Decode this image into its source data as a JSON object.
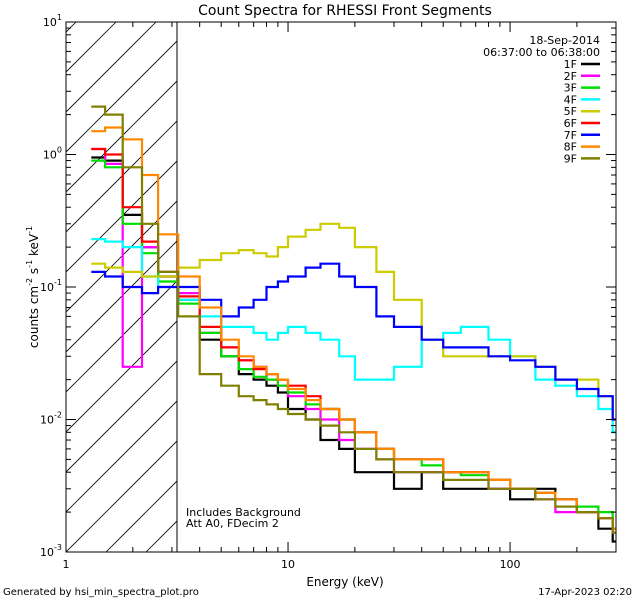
{
  "chart_data": {
    "type": "line",
    "title": "Count Spectra for RHESSI Front Segments",
    "xlabel": "Energy (keV)",
    "ylabel_main": "counts cm",
    "ylabel_exp1": "-2",
    "ylabel_s": " s",
    "ylabel_exp2": "-1",
    "ylabel_kev": " keV",
    "ylabel_exp3": "-1",
    "x_scale": "log",
    "y_scale": "log",
    "xlim": [
      1,
      300
    ],
    "ylim": [
      0.001,
      10
    ],
    "x_ticks": [
      {
        "value": 1,
        "label": "1"
      },
      {
        "value": 10,
        "label": "10"
      },
      {
        "value": 100,
        "label": "100"
      }
    ],
    "y_ticks": [
      {
        "value": 10,
        "base": "10",
        "exp": "1"
      },
      {
        "value": 1,
        "base": "10",
        "exp": "0"
      },
      {
        "value": 0.1,
        "base": "10",
        "exp": "-1"
      },
      {
        "value": 0.01,
        "base": "10",
        "exp": "-2"
      },
      {
        "value": 0.001,
        "base": "10",
        "exp": "-3"
      }
    ],
    "hatched_region_kev": [
      1,
      3
    ],
    "date": "18-Sep-2014",
    "time_range": "06:37:00 to 06:38:00",
    "annotations": [
      "Includes Background",
      "Att A0, FDecim 2"
    ],
    "footer_left": "Generated by hsi_min_spectra_plot.pro",
    "footer_right": "17-Apr-2023 02:20",
    "series": [
      {
        "name": "1F",
        "color": "#000000",
        "x": [
          1.3,
          1.5,
          1.8,
          2.2,
          2.6,
          3.2,
          4,
          5,
          6,
          7,
          8,
          9,
          10,
          12,
          14,
          17,
          20,
          25,
          30,
          40,
          50,
          60,
          80,
          100,
          130,
          160,
          200,
          250,
          290
        ],
        "y": [
          0.95,
          0.9,
          0.35,
          0.2,
          0.12,
          0.08,
          0.04,
          0.03,
          0.022,
          0.02,
          0.018,
          0.016,
          0.012,
          0.01,
          0.007,
          0.006,
          0.004,
          0.004,
          0.003,
          0.004,
          0.003,
          0.003,
          0.003,
          0.0025,
          0.003,
          0.0025,
          0.002,
          0.0015,
          0.0012
        ]
      },
      {
        "name": "2F",
        "color": "#ff00ff",
        "x": [
          1.3,
          1.5,
          1.8,
          2.2,
          2.6,
          3.2,
          4,
          5,
          6,
          7,
          8,
          9,
          10,
          12,
          14,
          17,
          20,
          25,
          30,
          40,
          50,
          60,
          80,
          100,
          130,
          160,
          200,
          250,
          290
        ],
        "y": [
          1.1,
          0.85,
          0.025,
          0.2,
          0.12,
          0.09,
          0.045,
          0.035,
          0.028,
          0.025,
          0.02,
          0.018,
          0.015,
          0.012,
          0.01,
          0.007,
          0.006,
          0.005,
          0.004,
          0.004,
          0.004,
          0.004,
          0.003,
          0.003,
          0.0025,
          0.002,
          0.002,
          0.0018,
          0.0014
        ]
      },
      {
        "name": "3F",
        "color": "#00dd00",
        "x": [
          1.3,
          1.5,
          1.8,
          2.2,
          2.6,
          3.2,
          4,
          5,
          6,
          7,
          8,
          9,
          10,
          12,
          14,
          17,
          20,
          25,
          30,
          40,
          50,
          60,
          80,
          100,
          130,
          160,
          200,
          250,
          290
        ],
        "y": [
          0.9,
          0.8,
          0.3,
          0.18,
          0.11,
          0.075,
          0.045,
          0.03,
          0.024,
          0.021,
          0.02,
          0.018,
          0.016,
          0.013,
          0.012,
          0.01,
          0.008,
          0.006,
          0.005,
          0.0045,
          0.004,
          0.0038,
          0.0035,
          0.003,
          0.0028,
          0.0025,
          0.0022,
          0.002,
          0.0015
        ]
      },
      {
        "name": "4F",
        "color": "#00ffff",
        "x": [
          1.3,
          1.5,
          1.8,
          2.2,
          2.6,
          3.2,
          4,
          5,
          6,
          7,
          8,
          9,
          10,
          12,
          14,
          17,
          20,
          25,
          30,
          40,
          50,
          60,
          80,
          100,
          130,
          160,
          200,
          250,
          290
        ],
        "y": [
          0.23,
          0.22,
          0.2,
          0.12,
          0.1,
          0.08,
          0.06,
          0.05,
          0.05,
          0.045,
          0.04,
          0.045,
          0.05,
          0.045,
          0.04,
          0.03,
          0.02,
          0.02,
          0.025,
          0.04,
          0.045,
          0.05,
          0.04,
          0.03,
          0.02,
          0.018,
          0.015,
          0.012,
          0.008
        ]
      },
      {
        "name": "5F",
        "color": "#cccc00",
        "x": [
          1.3,
          1.5,
          1.8,
          2.2,
          2.6,
          3.2,
          4,
          5,
          6,
          7,
          8,
          9,
          10,
          12,
          14,
          17,
          20,
          25,
          30,
          40,
          50,
          60,
          80,
          100,
          130,
          160,
          200,
          250,
          290
        ],
        "y": [
          0.15,
          0.14,
          0.13,
          0.12,
          0.12,
          0.14,
          0.16,
          0.18,
          0.19,
          0.18,
          0.17,
          0.2,
          0.24,
          0.27,
          0.3,
          0.28,
          0.2,
          0.13,
          0.08,
          0.04,
          0.03,
          0.03,
          0.03,
          0.03,
          0.025,
          0.02,
          0.02,
          0.015,
          0.01
        ]
      },
      {
        "name": "6F",
        "color": "#ff0000",
        "x": [
          1.3,
          1.5,
          1.8,
          2.2,
          2.6,
          3.2,
          4,
          5,
          6,
          7,
          8,
          9,
          10,
          12,
          14,
          17,
          20,
          25,
          30,
          40,
          50,
          60,
          80,
          100,
          130,
          160,
          200,
          250,
          290
        ],
        "y": [
          1.1,
          1.0,
          0.4,
          0.22,
          0.13,
          0.085,
          0.05,
          0.035,
          0.028,
          0.024,
          0.022,
          0.02,
          0.018,
          0.015,
          0.012,
          0.01,
          0.008,
          0.006,
          0.005,
          0.005,
          0.004,
          0.004,
          0.0035,
          0.003,
          0.0028,
          0.0025,
          0.002,
          0.0018,
          0.0015
        ]
      },
      {
        "name": "7F",
        "color": "#0000ff",
        "x": [
          1.3,
          1.5,
          1.8,
          2.2,
          2.6,
          3.2,
          4,
          5,
          6,
          7,
          8,
          9,
          10,
          12,
          14,
          17,
          20,
          25,
          30,
          40,
          50,
          60,
          80,
          100,
          130,
          160,
          200,
          250,
          290
        ],
        "y": [
          0.13,
          0.12,
          0.1,
          0.09,
          0.1,
          0.1,
          0.08,
          0.06,
          0.07,
          0.08,
          0.1,
          0.11,
          0.12,
          0.14,
          0.15,
          0.12,
          0.1,
          0.06,
          0.05,
          0.04,
          0.035,
          0.035,
          0.03,
          0.028,
          0.025,
          0.02,
          0.017,
          0.015,
          0.01
        ]
      },
      {
        "name": "8F",
        "color": "#ff8800",
        "x": [
          1.3,
          1.5,
          1.8,
          2.2,
          2.6,
          3.2,
          4,
          5,
          6,
          7,
          8,
          9,
          10,
          12,
          14,
          17,
          20,
          25,
          30,
          40,
          50,
          60,
          80,
          100,
          130,
          160,
          200,
          250,
          290
        ],
        "y": [
          1.5,
          1.6,
          1.3,
          0.7,
          0.25,
          0.12,
          0.07,
          0.04,
          0.03,
          0.025,
          0.022,
          0.02,
          0.017,
          0.014,
          0.012,
          0.01,
          0.008,
          0.006,
          0.005,
          0.005,
          0.004,
          0.004,
          0.0035,
          0.003,
          0.0028,
          0.0025,
          0.002,
          0.0018,
          0.0015
        ]
      },
      {
        "name": "9F",
        "color": "#808000",
        "x": [
          1.3,
          1.5,
          1.8,
          2.2,
          2.6,
          3.2,
          4,
          5,
          6,
          7,
          8,
          9,
          10,
          12,
          14,
          17,
          20,
          25,
          30,
          40,
          50,
          60,
          80,
          100,
          130,
          160,
          200,
          250,
          290
        ],
        "y": [
          2.3,
          2.0,
          0.8,
          0.3,
          0.13,
          0.06,
          0.022,
          0.018,
          0.015,
          0.014,
          0.013,
          0.012,
          0.011,
          0.01,
          0.009,
          0.008,
          0.006,
          0.005,
          0.004,
          0.004,
          0.0035,
          0.0035,
          0.003,
          0.003,
          0.0025,
          0.0022,
          0.002,
          0.0018,
          0.0014
        ]
      }
    ]
  }
}
